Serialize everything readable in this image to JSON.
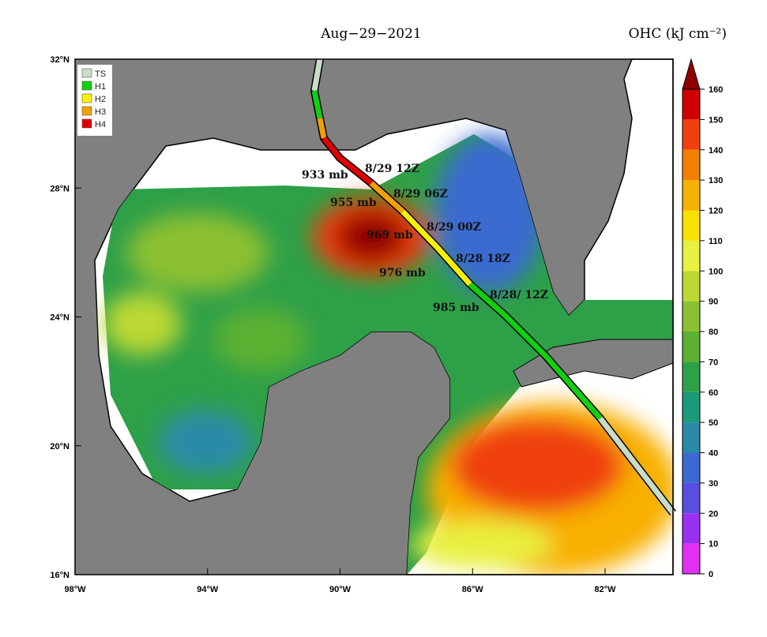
{
  "header": {
    "date": "Aug−29−2021",
    "variable": "OHC (kJ cm⁻²)"
  },
  "axes": {
    "lat_labels": [
      "32°N",
      "28°N",
      "24°N",
      "20°N",
      "16°N"
    ],
    "lon_labels": [
      "98°W",
      "94°W",
      "90°W",
      "86°W",
      "82°W"
    ]
  },
  "legend": [
    "TS",
    "H1",
    "H2",
    "H3",
    "H4"
  ],
  "annotations": [
    "933 mb",
    "8/29 12Z",
    "8/29 06Z",
    "955 mb",
    "969 mb",
    "8/29 00Z",
    "8/28 18Z",
    "976 mb",
    "8/28/ 12Z",
    "985 mb"
  ],
  "colorbar": {
    "ticks": [
      0,
      10,
      20,
      30,
      40,
      50,
      60,
      70,
      80,
      90,
      100,
      110,
      120,
      130,
      140,
      150,
      160
    ],
    "colors": [
      "#e030f0",
      "#9a30f0",
      "#5a4ee0",
      "#3a6ad0",
      "#2a8aa8",
      "#1a9a78",
      "#2ea048",
      "#5cb032",
      "#8cc032",
      "#bcd834",
      "#e8f040",
      "#f8e000",
      "#f8b000",
      "#f08000",
      "#f04010",
      "#d00000"
    ],
    "over_color": "#900000"
  }
}
